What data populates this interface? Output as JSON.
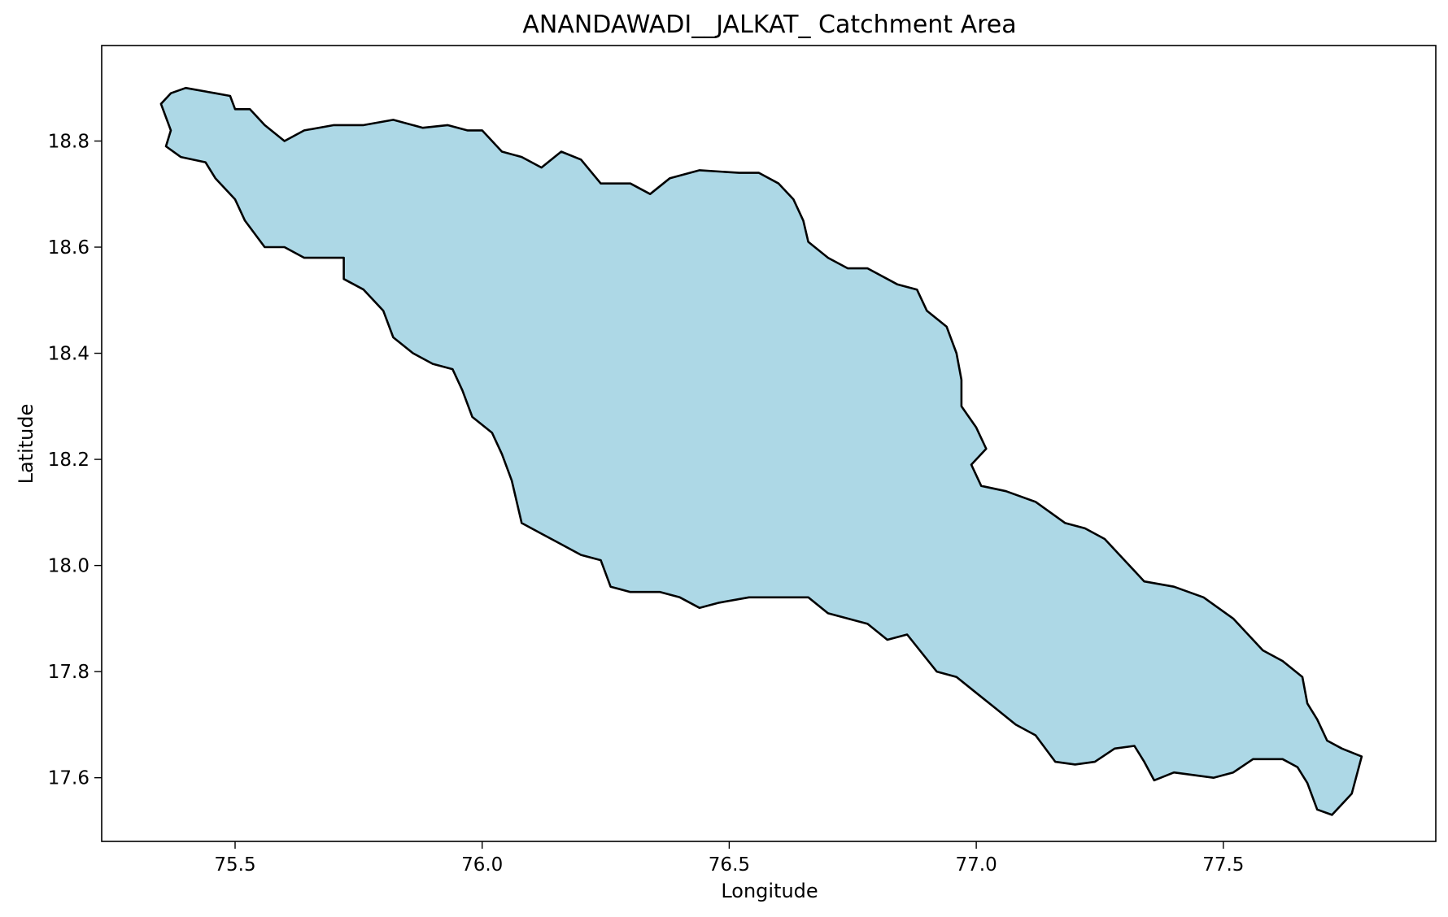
{
  "chart_data": {
    "type": "map",
    "title": "ANANDAWADI__JALKAT_ Catchment Area",
    "xlabel": "Longitude",
    "ylabel": "Latitude",
    "xlim": [
      75.23,
      77.93
    ],
    "ylim": [
      17.48,
      18.98
    ],
    "x_ticks": [
      {
        "value": 75.5,
        "label": "75.5"
      },
      {
        "value": 76.0,
        "label": "76.0"
      },
      {
        "value": 76.5,
        "label": "76.5"
      },
      {
        "value": 77.0,
        "label": "77.0"
      },
      {
        "value": 77.5,
        "label": "77.5"
      }
    ],
    "y_ticks": [
      {
        "value": 17.6,
        "label": "17.6"
      },
      {
        "value": 17.8,
        "label": "17.8"
      },
      {
        "value": 18.0,
        "label": "18.0"
      },
      {
        "value": 18.2,
        "label": "18.2"
      },
      {
        "value": 18.4,
        "label": "18.4"
      },
      {
        "value": 18.6,
        "label": "18.6"
      },
      {
        "value": 18.8,
        "label": "18.8"
      }
    ],
    "polygon_fill": "#add8e6",
    "polygon_stroke": "#000000",
    "grid": false,
    "polygon": [
      [
        75.4,
        18.9
      ],
      [
        75.46,
        18.89
      ],
      [
        75.49,
        18.885
      ],
      [
        75.5,
        18.86
      ],
      [
        75.53,
        18.86
      ],
      [
        75.56,
        18.83
      ],
      [
        75.6,
        18.8
      ],
      [
        75.64,
        18.82
      ],
      [
        75.7,
        18.83
      ],
      [
        75.76,
        18.83
      ],
      [
        75.82,
        18.84
      ],
      [
        75.88,
        18.825
      ],
      [
        75.93,
        18.83
      ],
      [
        75.97,
        18.82
      ],
      [
        76.0,
        18.82
      ],
      [
        76.04,
        18.78
      ],
      [
        76.08,
        18.77
      ],
      [
        76.12,
        18.75
      ],
      [
        76.16,
        18.78
      ],
      [
        76.2,
        18.765
      ],
      [
        76.24,
        18.72
      ],
      [
        76.3,
        18.72
      ],
      [
        76.34,
        18.7
      ],
      [
        76.38,
        18.73
      ],
      [
        76.44,
        18.745
      ],
      [
        76.52,
        18.74
      ],
      [
        76.56,
        18.74
      ],
      [
        76.6,
        18.72
      ],
      [
        76.63,
        18.69
      ],
      [
        76.65,
        18.65
      ],
      [
        76.66,
        18.61
      ],
      [
        76.7,
        18.58
      ],
      [
        76.74,
        18.56
      ],
      [
        76.78,
        18.56
      ],
      [
        76.84,
        18.53
      ],
      [
        76.88,
        18.52
      ],
      [
        76.9,
        18.48
      ],
      [
        76.94,
        18.45
      ],
      [
        76.96,
        18.4
      ],
      [
        76.97,
        18.35
      ],
      [
        76.97,
        18.3
      ],
      [
        77.0,
        18.26
      ],
      [
        77.02,
        18.22
      ],
      [
        76.99,
        18.19
      ],
      [
        77.01,
        18.15
      ],
      [
        77.06,
        18.14
      ],
      [
        77.12,
        18.12
      ],
      [
        77.18,
        18.08
      ],
      [
        77.22,
        18.07
      ],
      [
        77.26,
        18.05
      ],
      [
        77.3,
        18.01
      ],
      [
        77.34,
        17.97
      ],
      [
        77.4,
        17.96
      ],
      [
        77.46,
        17.94
      ],
      [
        77.52,
        17.9
      ],
      [
        77.56,
        17.86
      ],
      [
        77.58,
        17.84
      ],
      [
        77.62,
        17.82
      ],
      [
        77.66,
        17.79
      ],
      [
        77.67,
        17.74
      ],
      [
        77.69,
        17.71
      ],
      [
        77.71,
        17.67
      ],
      [
        77.74,
        17.655
      ],
      [
        77.78,
        17.64
      ],
      [
        77.76,
        17.57
      ],
      [
        77.72,
        17.53
      ],
      [
        77.69,
        17.54
      ],
      [
        77.67,
        17.59
      ],
      [
        77.65,
        17.62
      ],
      [
        77.62,
        17.635
      ],
      [
        77.56,
        17.635
      ],
      [
        77.52,
        17.61
      ],
      [
        77.48,
        17.6
      ],
      [
        77.44,
        17.605
      ],
      [
        77.4,
        17.61
      ],
      [
        77.36,
        17.595
      ],
      [
        77.34,
        17.63
      ],
      [
        77.32,
        17.66
      ],
      [
        77.28,
        17.655
      ],
      [
        77.24,
        17.63
      ],
      [
        77.2,
        17.625
      ],
      [
        77.16,
        17.63
      ],
      [
        77.12,
        17.68
      ],
      [
        77.08,
        17.7
      ],
      [
        77.04,
        17.73
      ],
      [
        77.0,
        17.76
      ],
      [
        76.96,
        17.79
      ],
      [
        76.92,
        17.8
      ],
      [
        76.86,
        17.87
      ],
      [
        76.82,
        17.86
      ],
      [
        76.78,
        17.89
      ],
      [
        76.74,
        17.9
      ],
      [
        76.7,
        17.91
      ],
      [
        76.66,
        17.94
      ],
      [
        76.6,
        17.94
      ],
      [
        76.54,
        17.94
      ],
      [
        76.48,
        17.93
      ],
      [
        76.44,
        17.92
      ],
      [
        76.4,
        17.94
      ],
      [
        76.36,
        17.95
      ],
      [
        76.3,
        17.95
      ],
      [
        76.26,
        17.96
      ],
      [
        76.24,
        18.01
      ],
      [
        76.2,
        18.02
      ],
      [
        76.16,
        18.04
      ],
      [
        76.12,
        18.06
      ],
      [
        76.08,
        18.08
      ],
      [
        76.06,
        18.16
      ],
      [
        76.04,
        18.21
      ],
      [
        76.02,
        18.25
      ],
      [
        75.98,
        18.28
      ],
      [
        75.96,
        18.33
      ],
      [
        75.94,
        18.37
      ],
      [
        75.9,
        18.38
      ],
      [
        75.86,
        18.4
      ],
      [
        75.82,
        18.43
      ],
      [
        75.8,
        18.48
      ],
      [
        75.76,
        18.52
      ],
      [
        75.72,
        18.54
      ],
      [
        75.72,
        18.58
      ],
      [
        75.68,
        18.58
      ],
      [
        75.64,
        18.58
      ],
      [
        75.6,
        18.6
      ],
      [
        75.56,
        18.6
      ],
      [
        75.52,
        18.65
      ],
      [
        75.5,
        18.69
      ],
      [
        75.46,
        18.73
      ],
      [
        75.44,
        18.76
      ],
      [
        75.39,
        18.77
      ],
      [
        75.36,
        18.79
      ],
      [
        75.37,
        18.82
      ],
      [
        75.35,
        18.87
      ],
      [
        75.37,
        18.89
      ]
    ]
  }
}
